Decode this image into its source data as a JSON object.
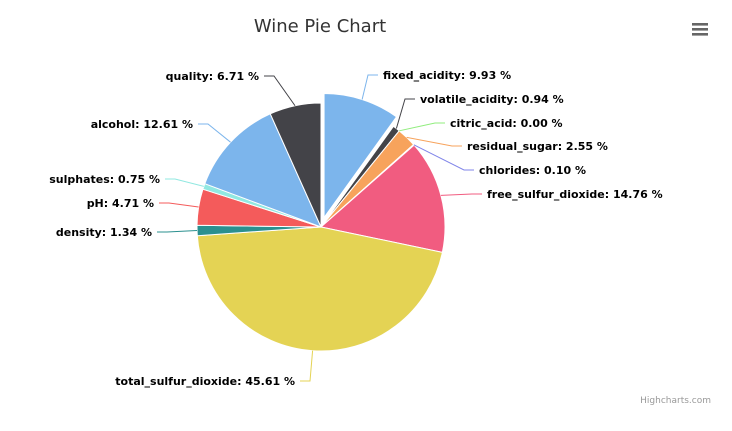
{
  "chart_data": {
    "type": "pie",
    "title": "Wine Pie Chart",
    "label_format": "{name}: {value} %",
    "slices": [
      {
        "name": "fixed_acidity",
        "value": 9.93,
        "color": "#7cb5ec",
        "sliced": true
      },
      {
        "name": "volatile_acidity",
        "value": 0.94,
        "color": "#434348",
        "sliced": false
      },
      {
        "name": "citric_acid",
        "value": 0.0,
        "color": "#90ed7d",
        "sliced": false
      },
      {
        "name": "residual_sugar",
        "value": 2.55,
        "color": "#f7a35c",
        "sliced": false
      },
      {
        "name": "chlorides",
        "value": 0.1,
        "color": "#8085e9",
        "sliced": false
      },
      {
        "name": "free_sulfur_dioxide",
        "value": 14.76,
        "color": "#f15c80",
        "sliced": false
      },
      {
        "name": "total_sulfur_dioxide",
        "value": 45.61,
        "color": "#e4d354",
        "sliced": false
      },
      {
        "name": "density",
        "value": 1.34,
        "color": "#2b908f",
        "sliced": false
      },
      {
        "name": "pH",
        "value": 4.71,
        "color": "#f45b5b",
        "sliced": false
      },
      {
        "name": "sulphates",
        "value": 0.75,
        "color": "#91e8e1",
        "sliced": false
      },
      {
        "name": "alcohol",
        "value": 12.61,
        "color": "#7cb5ec",
        "sliced": false
      },
      {
        "name": "quality",
        "value": 6.71,
        "color": "#434348",
        "sliced": false
      }
    ]
  },
  "credits": "Highcharts.com",
  "menu_icon": "hamburger-menu-icon"
}
